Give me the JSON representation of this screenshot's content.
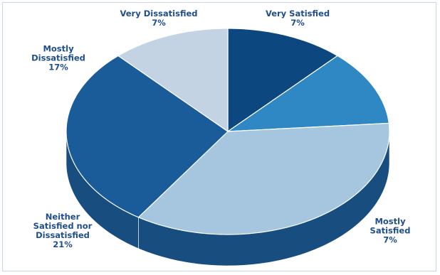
{
  "chart_data": {
    "type": "pie",
    "categories": [
      "Very Satisfied",
      "Mostly Satisfied",
      "Neither Satisfied nor Dissatisfied",
      "Mostly Dissatisfied",
      "Very Dissatisfied"
    ],
    "values": [
      7,
      7,
      21,
      17,
      7
    ],
    "value_labels": [
      "7%",
      "7%",
      "21%",
      "17%",
      "7%"
    ],
    "colors": [
      "#0d477f",
      "#2f88c4",
      "#a5c6de",
      "#1a5c99",
      "#c4d3e3"
    ]
  }
}
